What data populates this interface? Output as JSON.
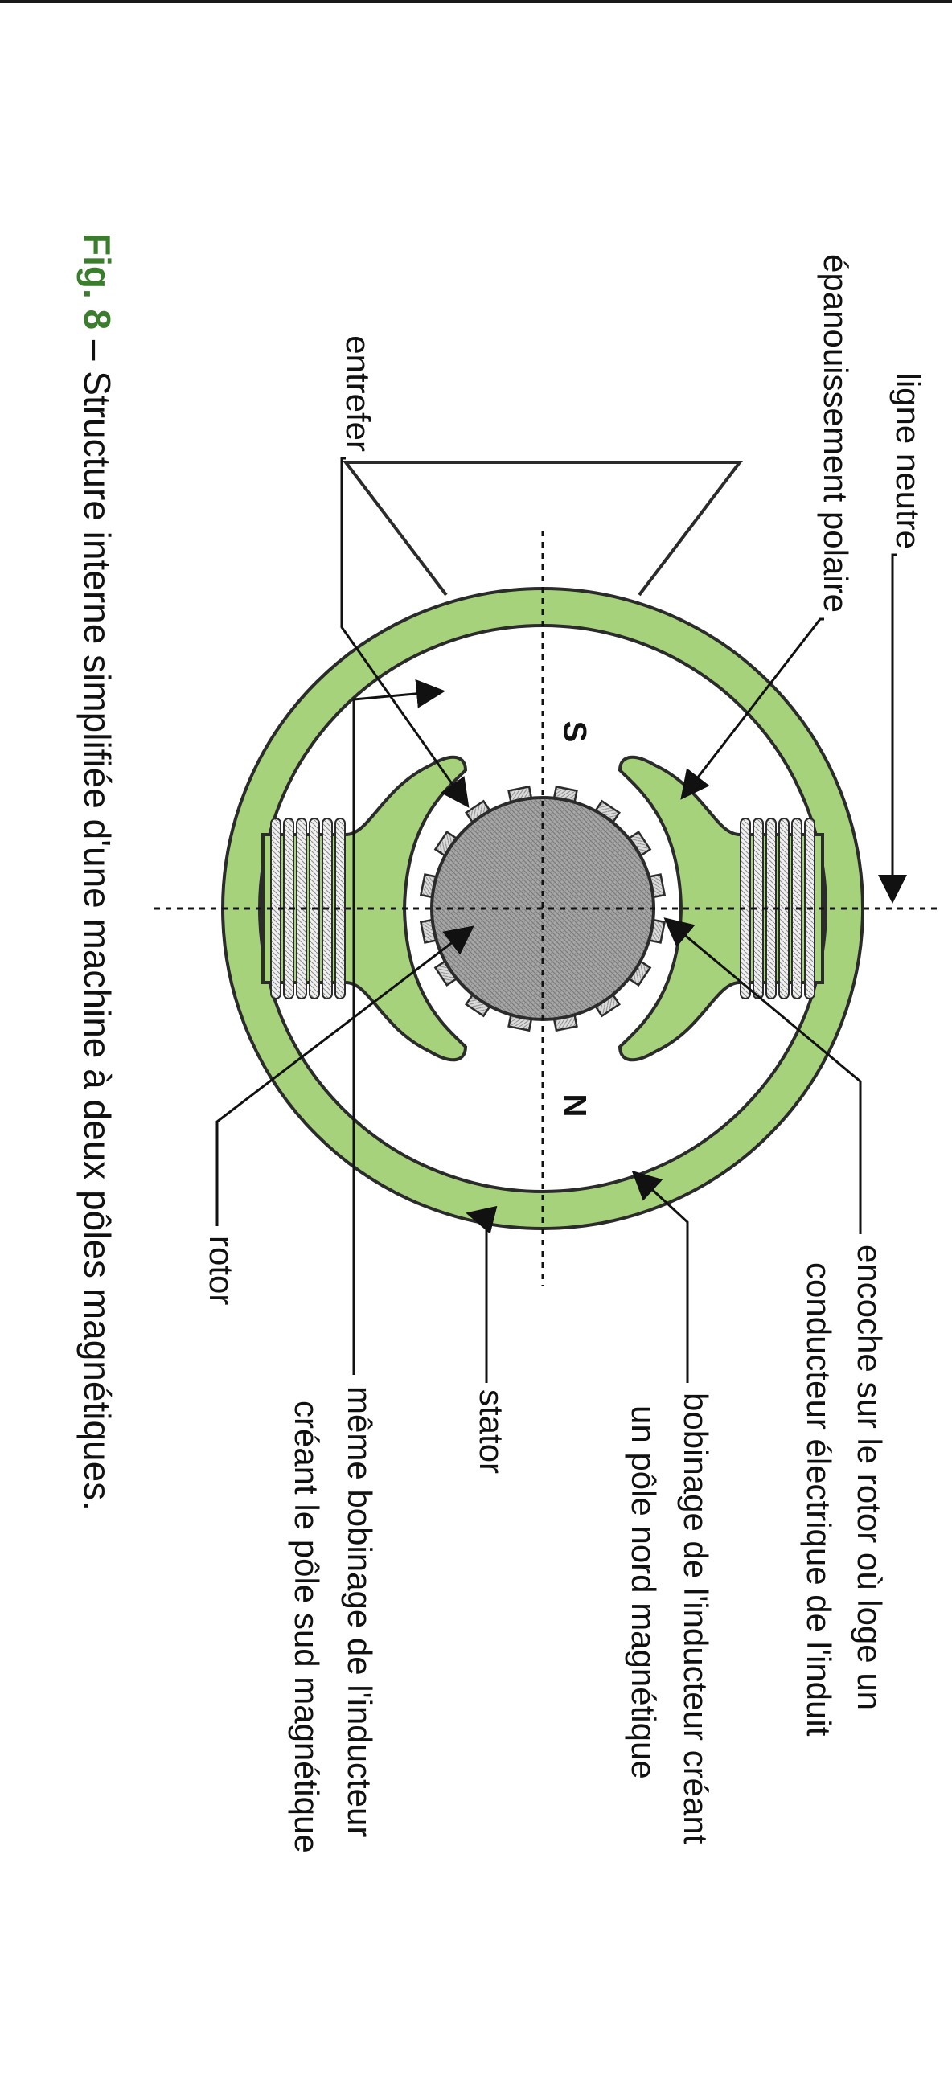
{
  "labels": {
    "ligne_neutre": "ligne neutre",
    "epanouissement": "épanouissement polaire",
    "encoche_1": "encoche sur le rotor où loge un",
    "encoche_2": "conducteur électrique de l'induit",
    "entrefer": "entrefer",
    "bobinage_nord_1": "bobinage de l'inducteur créant",
    "bobinage_nord_2": "un pôle nord magnétique",
    "stator": "stator",
    "bobinage_sud_1": "même bobinage de l'inducteur",
    "bobinage_sud_2": "créant le pôle sud magnétique",
    "rotor": "rotor",
    "pole_s": "S",
    "pole_n": "N"
  },
  "caption": {
    "fig_number": "Fig. 8",
    "text": " – Structure interne simplifiée d'une machine à deux pôles magnétiques."
  },
  "colors": {
    "stator_green": "#a6d27c",
    "stator_stroke": "#2b2b2b",
    "rotor_gray": "#a3a3a3",
    "caption_fig_green": "#3a7d2c",
    "text": "#111111"
  }
}
